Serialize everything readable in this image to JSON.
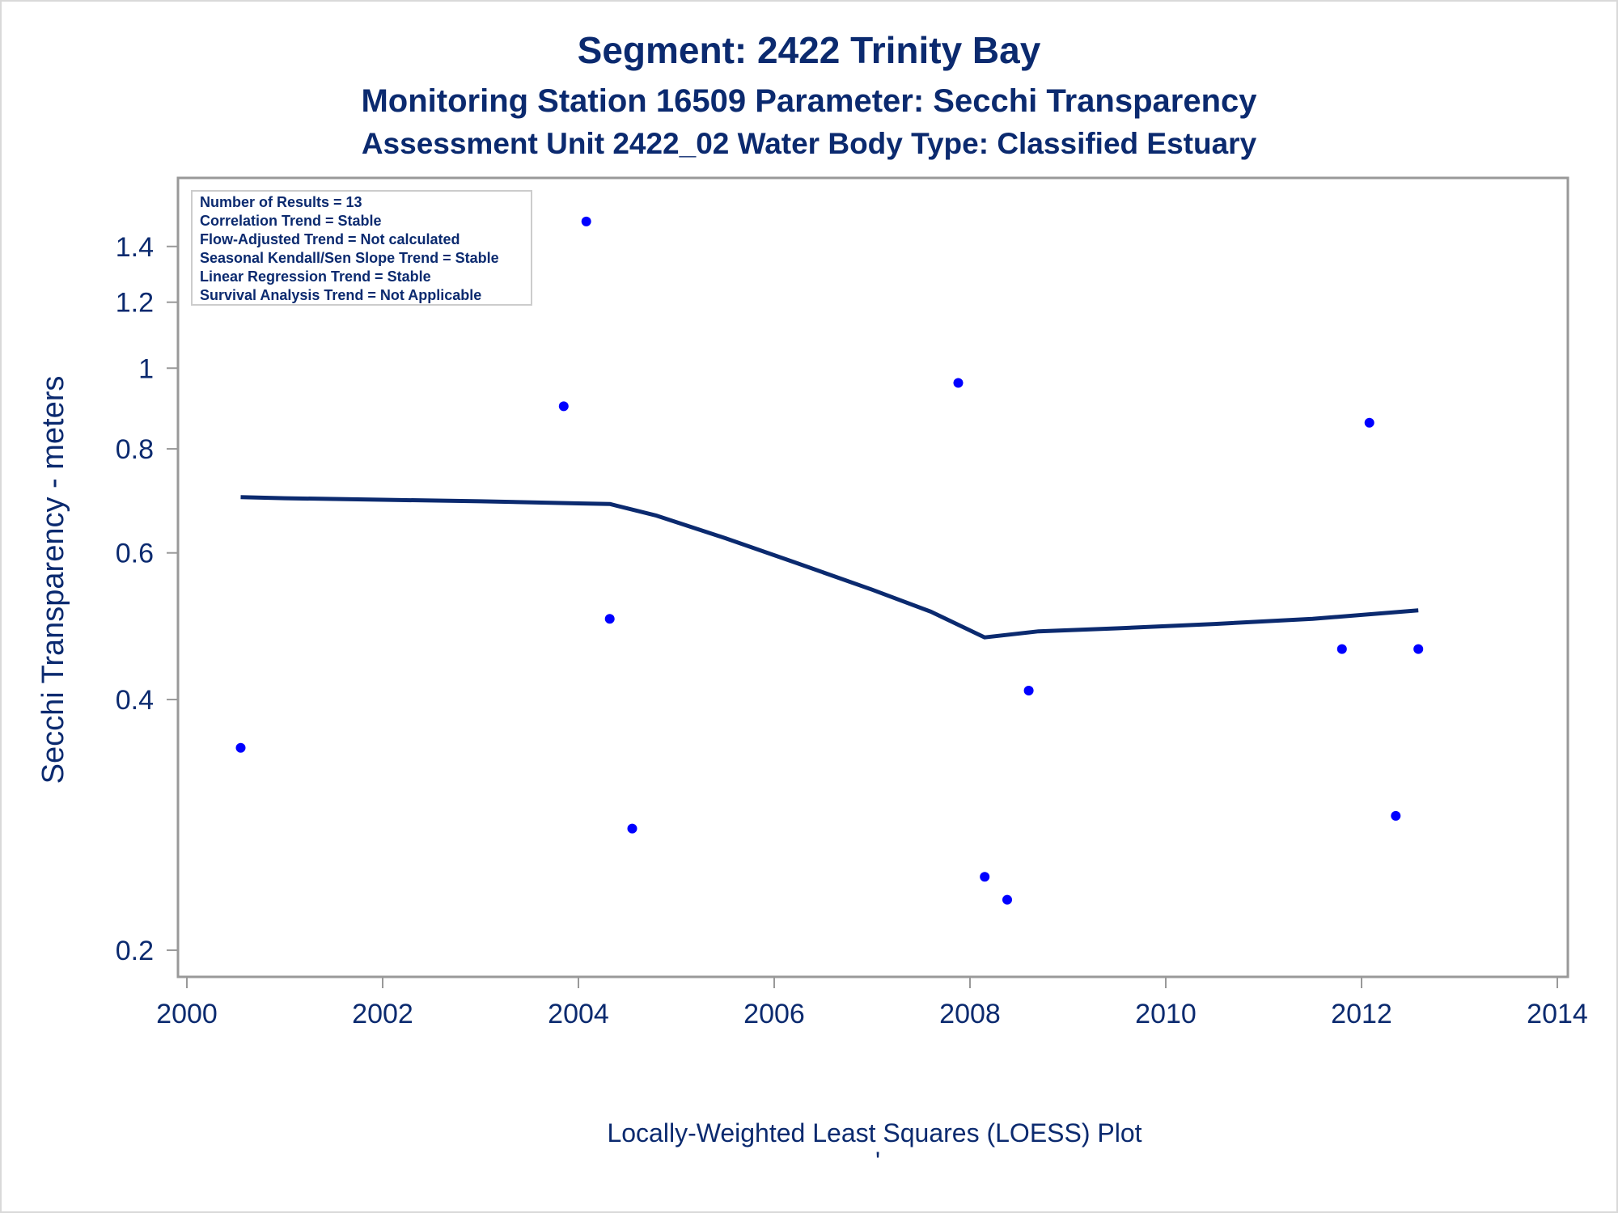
{
  "titles": {
    "line1": "Segment: 2422  Trinity Bay",
    "line2": "Monitoring Station 16509 Parameter: Secchi Transparency",
    "line3": "Assessment Unit 2422_02   Water Body Type: Classified Estuary"
  },
  "stats_box": {
    "lines": [
      "Number of Results = 13",
      "Correlation Trend = Stable",
      "Flow-Adjusted Trend = Not calculated",
      "Seasonal Kendall/Sen Slope Trend = Stable",
      "Linear Regression Trend = Stable",
      "Survival Analysis Trend = Not Applicable"
    ]
  },
  "footer": {
    "plot_type": "Locally-Weighted Least Squares (LOESS) Plot",
    "mark": "'"
  },
  "colors": {
    "text": "#0b2a6f",
    "points": "#0000ff",
    "loess_line": "#0b2a6f",
    "axis": "#999999"
  },
  "chart_data": {
    "type": "scatter",
    "ylabel": "Secchi Transparency - meters",
    "xlabel": "",
    "y_scale": "log",
    "xlim": [
      2000,
      2014
    ],
    "ylim": [
      0.19,
      1.52
    ],
    "x_ticks": [
      2000,
      2002,
      2004,
      2006,
      2008,
      2010,
      2012,
      2014
    ],
    "x_tick_labels": [
      "2000",
      "2002",
      "2004",
      "2006",
      "2008",
      "2010",
      "2012",
      "2014"
    ],
    "y_ticks": [
      0.2,
      0.4,
      0.6,
      0.8,
      1,
      1.2,
      1.4
    ],
    "y_tick_labels": [
      "0.2",
      "0.4",
      "0.6",
      "0.8",
      "1",
      "1.2",
      "1.4"
    ],
    "points": [
      {
        "x": 2000.55,
        "y": 0.35
      },
      {
        "x": 2003.85,
        "y": 0.9
      },
      {
        "x": 2004.08,
        "y": 1.5
      },
      {
        "x": 2004.32,
        "y": 0.5
      },
      {
        "x": 2004.55,
        "y": 0.28
      },
      {
        "x": 2007.88,
        "y": 0.96
      },
      {
        "x": 2008.15,
        "y": 0.245
      },
      {
        "x": 2008.38,
        "y": 0.23
      },
      {
        "x": 2008.6,
        "y": 0.41
      },
      {
        "x": 2011.8,
        "y": 0.46
      },
      {
        "x": 2012.08,
        "y": 0.86
      },
      {
        "x": 2012.35,
        "y": 0.29
      },
      {
        "x": 2012.58,
        "y": 0.46
      }
    ],
    "loess": {
      "x": [
        2000.55,
        2001,
        2002,
        2003,
        2004,
        2004.32,
        2004.8,
        2005.5,
        2006.2,
        2007,
        2007.6,
        2008.15,
        2008.7,
        2009.5,
        2010.5,
        2011.5,
        2012.58
      ],
      "y": [
        0.7,
        0.698,
        0.695,
        0.692,
        0.688,
        0.687,
        0.665,
        0.625,
        0.585,
        0.542,
        0.51,
        0.475,
        0.483,
        0.487,
        0.493,
        0.5,
        0.512
      ]
    },
    "grid": false,
    "legend": "none"
  }
}
